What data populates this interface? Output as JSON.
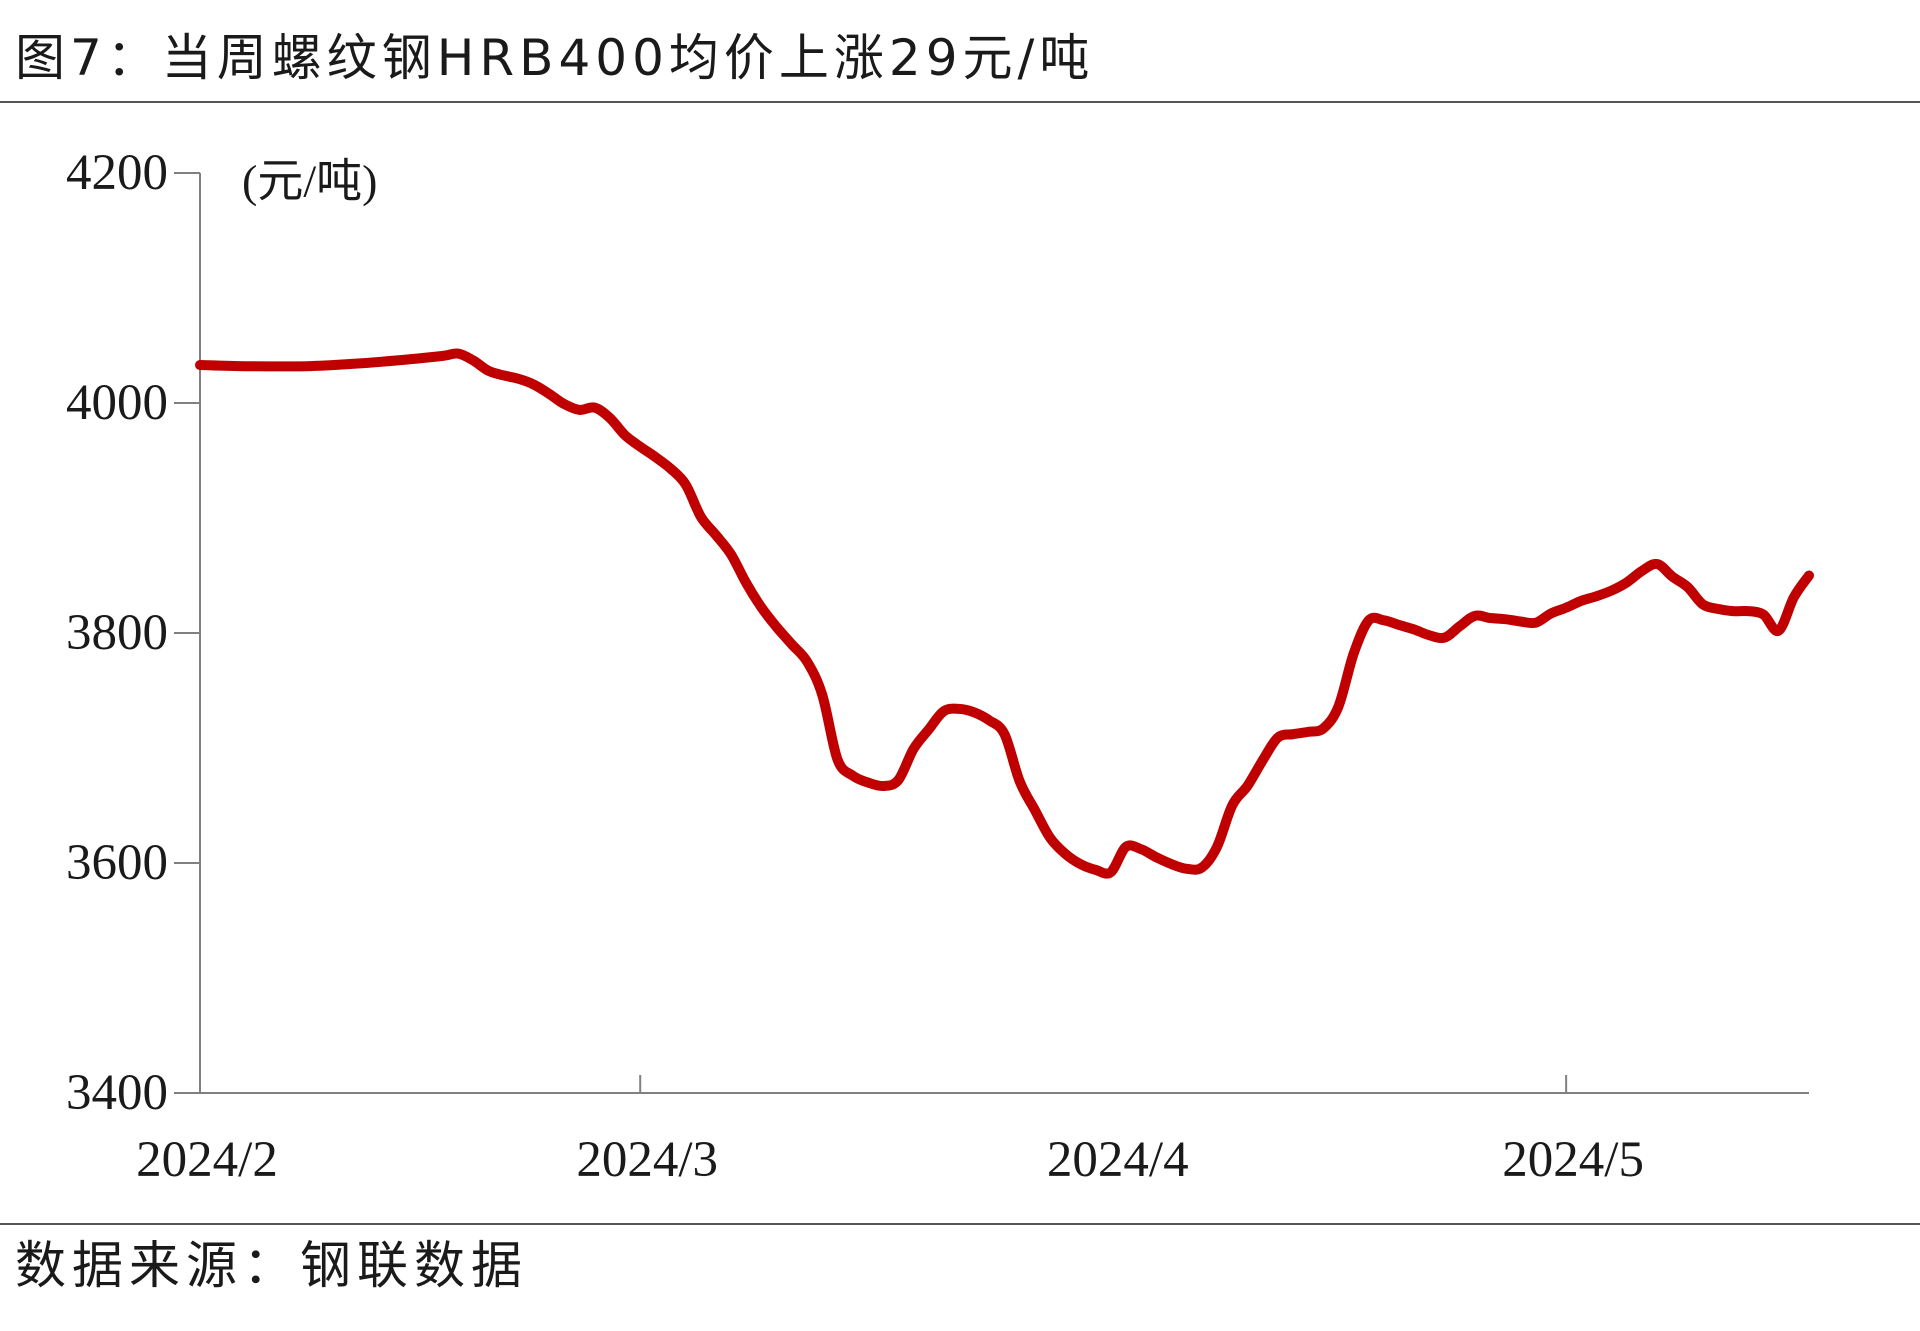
{
  "chart_data": {
    "type": "line",
    "title": "图7：当周螺纹钢HRB400均价上涨29元/吨",
    "ylabel": "(元/吨)",
    "source": "数据来源：钢联数据",
    "ylim": [
      3400,
      4200
    ],
    "y_ticks": [
      3400,
      3600,
      3800,
      4000,
      4200
    ],
    "xlim": [
      "2024-02-01",
      "2024-05-17"
    ],
    "x_tick_labels": [
      "2024/2",
      "2024/3",
      "2024/4",
      "2024/5"
    ],
    "grid": false,
    "x": [
      "2024-02-01",
      "2024-02-04",
      "2024-02-08",
      "2024-02-11",
      "2024-02-14",
      "2024-02-17",
      "2024-02-18",
      "2024-02-19",
      "2024-02-20",
      "2024-02-21",
      "2024-02-22",
      "2024-02-23",
      "2024-02-24",
      "2024-02-25",
      "2024-02-26",
      "2024-02-27",
      "2024-02-28",
      "2024-02-29",
      "2024-03-01",
      "2024-03-02",
      "2024-03-03",
      "2024-03-04",
      "2024-03-05",
      "2024-03-06",
      "2024-03-07",
      "2024-03-08",
      "2024-03-09",
      "2024-03-10",
      "2024-03-11",
      "2024-03-12",
      "2024-03-13",
      "2024-03-14",
      "2024-03-15",
      "2024-03-16",
      "2024-03-17",
      "2024-03-18",
      "2024-03-19",
      "2024-03-20",
      "2024-03-21",
      "2024-03-22",
      "2024-03-23",
      "2024-03-24",
      "2024-03-25",
      "2024-03-26",
      "2024-03-27",
      "2024-03-28",
      "2024-03-29",
      "2024-03-30",
      "2024-03-31",
      "2024-04-01",
      "2024-04-02",
      "2024-04-03",
      "2024-04-04",
      "2024-04-05",
      "2024-04-06",
      "2024-04-07",
      "2024-04-08",
      "2024-04-09",
      "2024-04-10",
      "2024-04-11",
      "2024-04-12",
      "2024-04-13",
      "2024-04-14",
      "2024-04-15",
      "2024-04-16",
      "2024-04-17",
      "2024-04-18",
      "2024-04-19",
      "2024-04-20",
      "2024-04-21",
      "2024-04-22",
      "2024-04-23",
      "2024-04-24",
      "2024-04-25",
      "2024-04-26",
      "2024-04-27",
      "2024-04-28",
      "2024-04-29",
      "2024-04-30",
      "2024-05-01",
      "2024-05-02",
      "2024-05-03",
      "2024-05-04",
      "2024-05-05",
      "2024-05-06",
      "2024-05-07",
      "2024-05-08",
      "2024-05-09",
      "2024-05-10",
      "2024-05-11",
      "2024-05-12",
      "2024-05-13",
      "2024-05-14",
      "2024-05-15",
      "2024-05-16",
      "2024-05-17"
    ],
    "series": [
      {
        "color": "#C00000",
        "values": [
          4033,
          4032,
          4032,
          4034,
          4037,
          4041,
          4043,
          4037,
          4028,
          4024,
          4021,
          4016,
          4008,
          3999,
          3994,
          3996,
          3987,
          3972,
          3962,
          3953,
          3943,
          3929,
          3901,
          3885,
          3868,
          3843,
          3822,
          3805,
          3790,
          3775,
          3746,
          3690,
          3676,
          3670,
          3667,
          3672,
          3699,
          3716,
          3732,
          3734,
          3731,
          3724,
          3712,
          3671,
          3646,
          3622,
          3608,
          3599,
          3594,
          3592,
          3614,
          3612,
          3605,
          3599,
          3595,
          3596,
          3614,
          3650,
          3667,
          3689,
          3709,
          3712,
          3714,
          3717,
          3736,
          3782,
          3811,
          3811,
          3807,
          3803,
          3798,
          3796,
          3806,
          3815,
          3813,
          3812,
          3810,
          3809,
          3817,
          3822,
          3828,
          3832,
          3837,
          3844,
          3854,
          3860,
          3849,
          3840,
          3825,
          3821,
          3819,
          3819,
          3816,
          3802,
          3831,
          3850
        ]
      }
    ]
  }
}
